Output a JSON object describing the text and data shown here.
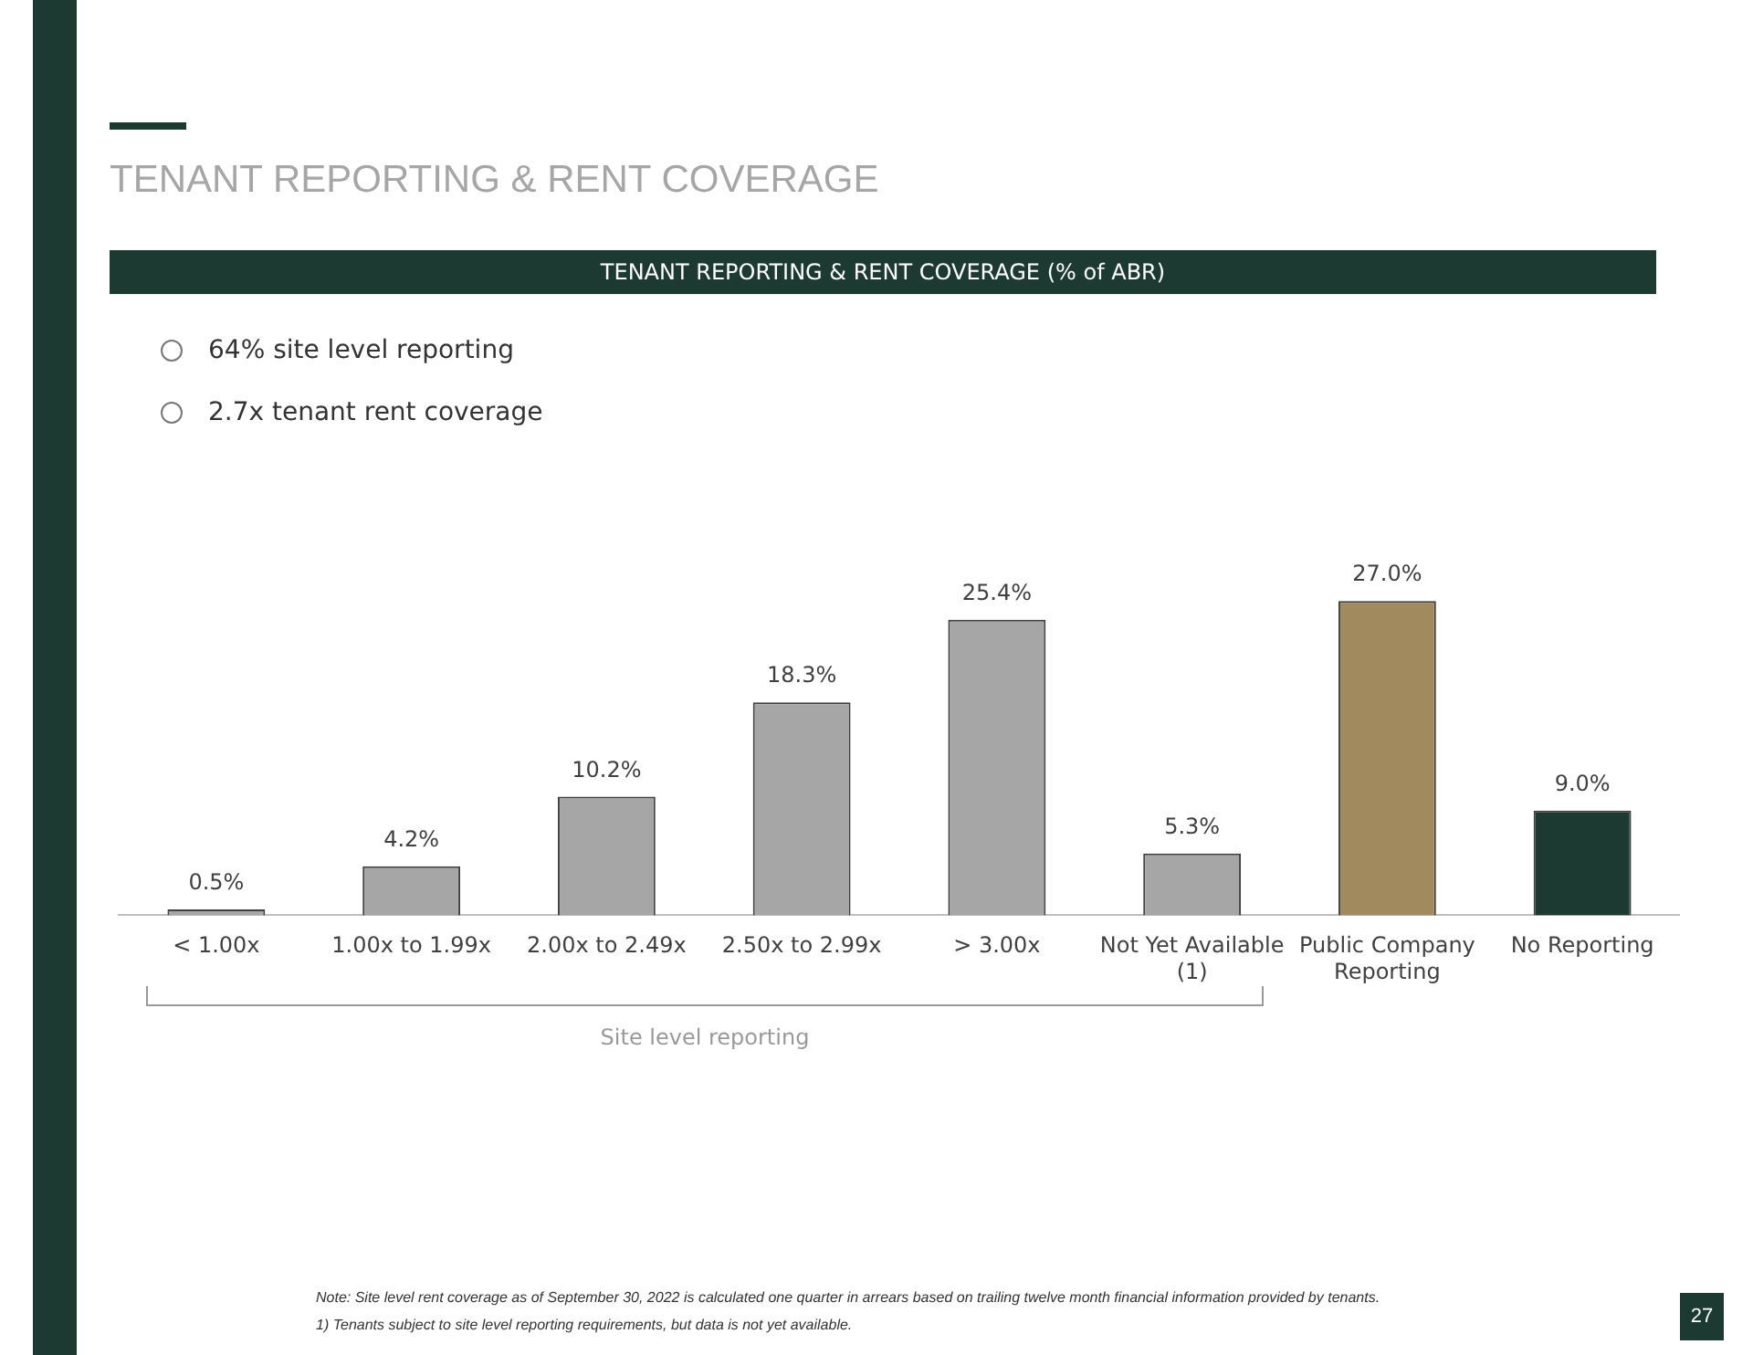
{
  "chart_data": {
    "type": "bar",
    "title": "TENANT REPORTING & RENT COVERAGE",
    "subtitle": "TENANT REPORTING & RENT COVERAGE (% of ABR)",
    "categories": [
      "< 1.00x",
      "1.00x to 1.99x",
      "2.00x to 2.49x",
      "2.50x to 2.99x",
      "> 3.00x",
      "Not Yet Available (1)",
      "Public Company Reporting",
      "No Reporting"
    ],
    "values": [
      0.5,
      4.2,
      10.2,
      18.3,
      25.4,
      5.3,
      27.0,
      9.0
    ],
    "colors": [
      "#a6a6a6",
      "#a6a6a6",
      "#a6a6a6",
      "#a6a6a6",
      "#a6a6a6",
      "#a6a6a6",
      "#a08a5e",
      "#1c3a32"
    ],
    "value_labels": [
      "0.5%",
      "4.2%",
      "10.2%",
      "18.3%",
      "25.4%",
      "5.3%",
      "27.0%",
      "9.0%"
    ],
    "grid": false,
    "legend": false,
    "annotations": [
      "64% site level reporting",
      "2.7x tenant rent coverage",
      "Site level reporting",
      "Note: Site level rent coverage as of September 30, 2022 is calculated one quarter in arrears based on trailing twelve month financial information provided by tenants.",
      "1)  Tenants subject to site level reporting requirements, but data is not yet available.",
      "27"
    ]
  }
}
